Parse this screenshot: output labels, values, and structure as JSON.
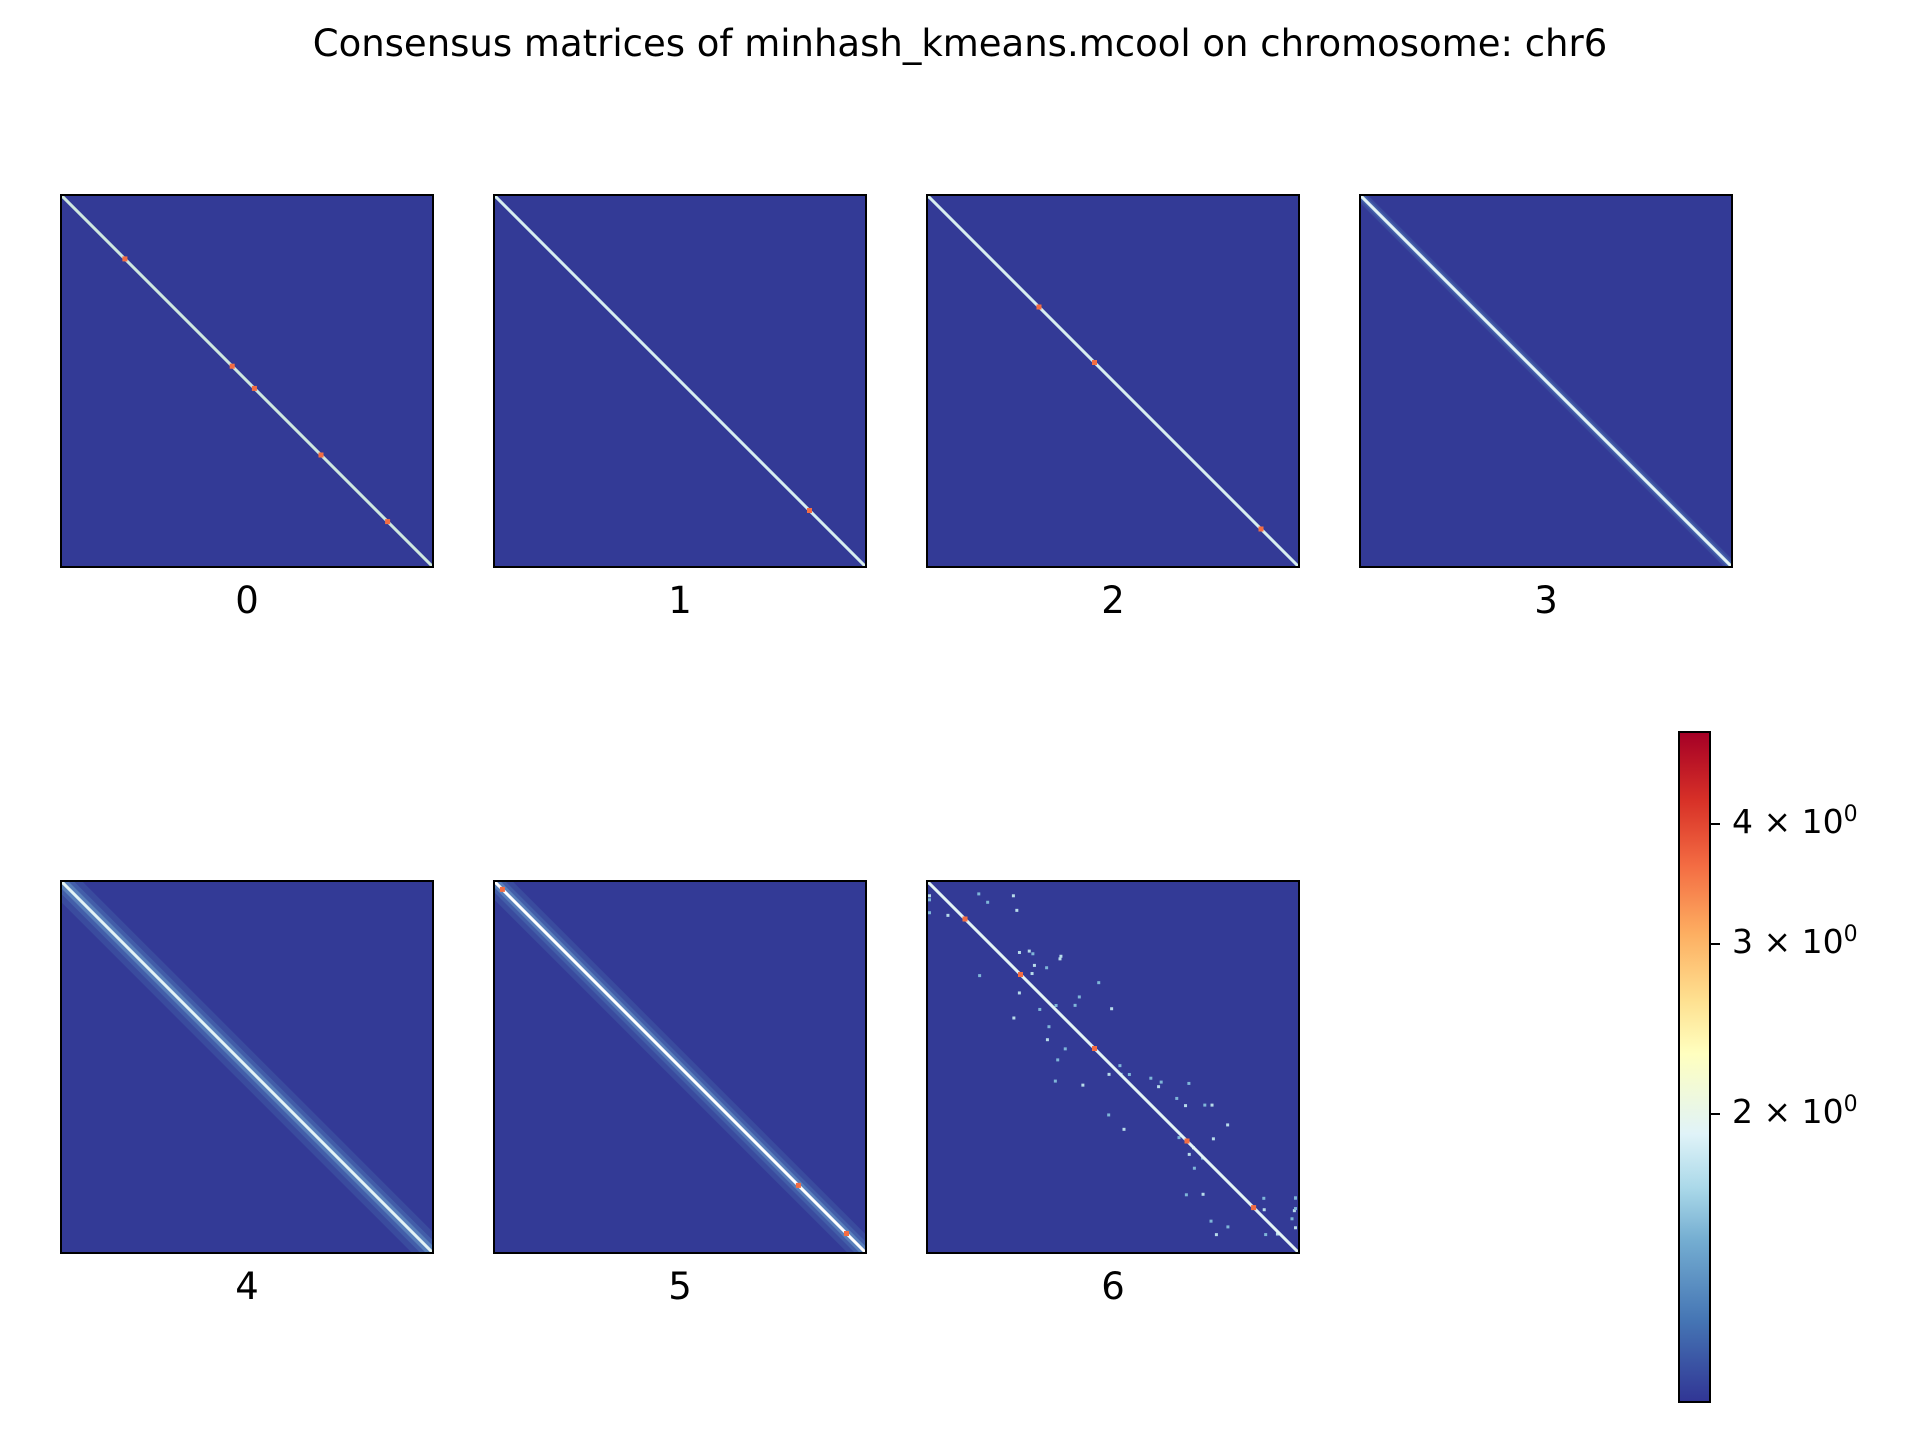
{
  "chart_data": {
    "type": "heatmap",
    "title": "Consensus matrices of minhash_kmeans.mcool on chromosome: chr6",
    "panels": [
      {
        "label": "0",
        "background": "#333a96",
        "diagonal_color": "#cfe8e0",
        "band": 0.0,
        "noise": 0.0,
        "hotspots": [
          0.17,
          0.46,
          0.52,
          0.7,
          0.88
        ]
      },
      {
        "label": "1",
        "background": "#333a96",
        "diagonal_color": "#d7eef0",
        "band": 0.0,
        "noise": 0.0,
        "hotspots": [
          0.85
        ]
      },
      {
        "label": "2",
        "background": "#333a96",
        "diagonal_color": "#d7eef0",
        "band": 0.0,
        "noise": 0.0,
        "hotspots": [
          0.3,
          0.45,
          0.9
        ]
      },
      {
        "label": "3",
        "background": "#333a96",
        "diagonal_color": "#e4f4f6",
        "band": 0.03,
        "noise": 0.0,
        "hotspots": []
      },
      {
        "label": "4",
        "background": "#333a96",
        "diagonal_color": "#e4f4f6",
        "band": 0.08,
        "noise": 0.0,
        "hotspots": []
      },
      {
        "label": "5",
        "background": "#333a96",
        "diagonal_color": "#ffffff",
        "band": 0.07,
        "noise": 0.0,
        "hotspots": [
          0.02,
          0.82,
          0.95
        ]
      },
      {
        "label": "6",
        "background": "#333a96",
        "diagonal_color": "#e4f4f6",
        "band": 0.0,
        "noise": 0.6,
        "hotspots": [
          0.1,
          0.25,
          0.45,
          0.7,
          0.88
        ]
      }
    ],
    "colorbar": {
      "colormap": "RdYlBu_r",
      "scale": "log",
      "range": [
        1.0,
        5.0
      ],
      "ticks": [
        {
          "value": 2,
          "label": "2 × 10",
          "exp": "0"
        },
        {
          "value": 3,
          "label": "3 × 10",
          "exp": "0"
        },
        {
          "value": 4,
          "label": "4 × 10",
          "exp": "0"
        }
      ]
    }
  }
}
